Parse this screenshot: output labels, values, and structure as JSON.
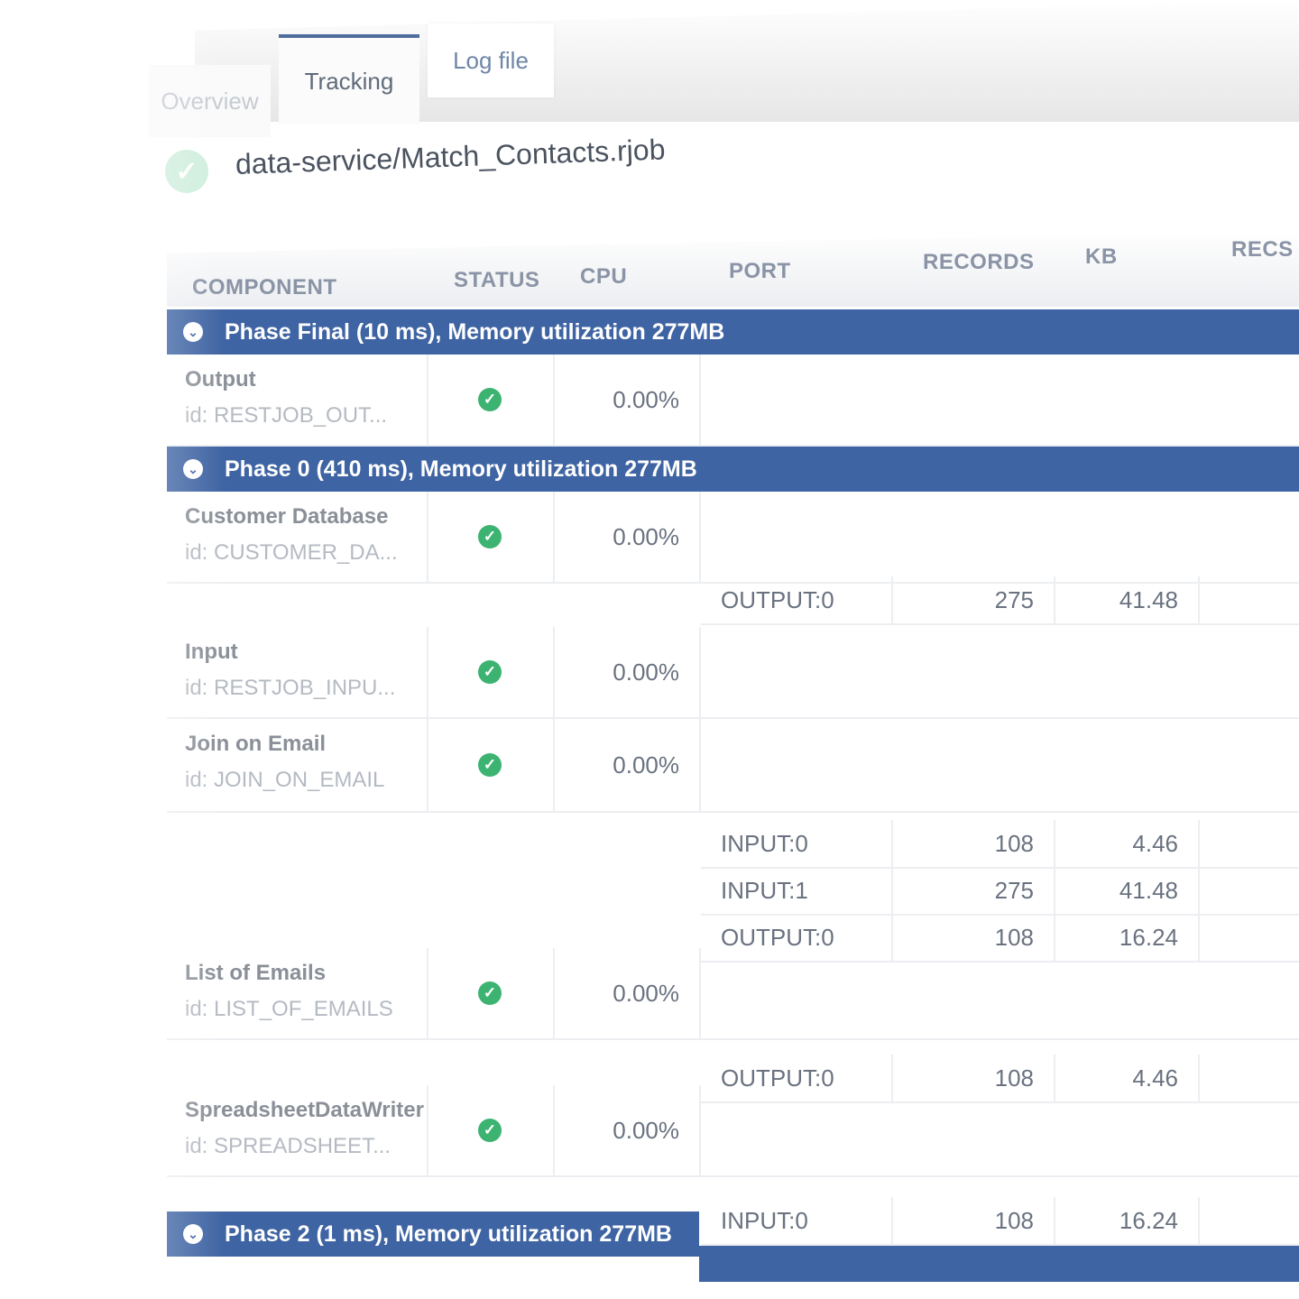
{
  "tabs": {
    "overview": "Overview",
    "tracking": "Tracking",
    "log_file": "Log file"
  },
  "job": {
    "title": "data-service/Match_Contacts.rjob",
    "status_icon": "check-circle-icon"
  },
  "columns": {
    "component": "COMPONENT",
    "status": "STATUS",
    "cpu": "CPU",
    "port": "PORT",
    "records": "RECORDS",
    "kb": "KB",
    "recs": "RECS"
  },
  "phases": {
    "final": "Phase Final (10 ms), Memory utilization 277MB",
    "zero": "Phase 0 (410 ms), Memory utilization 277MB",
    "two": "Phase 2 (1 ms), Memory utilization 277MB"
  },
  "components": [
    {
      "name": "Output",
      "id": "id: RESTJOB_OUT...",
      "cpu": "0.00%"
    },
    {
      "name": "Customer Database",
      "id": "id: CUSTOMER_DA...",
      "cpu": "0.00%"
    },
    {
      "name": "Input",
      "id": "id: RESTJOB_INPU...",
      "cpu": "0.00%"
    },
    {
      "name": "Join on Email",
      "id": "id: JOIN_ON_EMAIL",
      "cpu": "0.00%"
    },
    {
      "name": "List of Emails",
      "id": "id: LIST_OF_EMAILS",
      "cpu": "0.00%"
    },
    {
      "name": "SpreadsheetDataWriter",
      "id": "id: SPREADSHEET...",
      "cpu": "0.00%"
    }
  ],
  "ports": [
    {
      "port": "OUTPUT:0",
      "records": "275",
      "kb": "41.48"
    },
    {
      "port": "INPUT:0",
      "records": "108",
      "kb": "4.46"
    },
    {
      "port": "INPUT:1",
      "records": "275",
      "kb": "41.48"
    },
    {
      "port": "OUTPUT:0",
      "records": "108",
      "kb": "16.24"
    },
    {
      "port": "OUTPUT:0",
      "records": "108",
      "kb": "4.46"
    },
    {
      "port": "INPUT:0",
      "records": "108",
      "kb": "16.24"
    }
  ]
}
